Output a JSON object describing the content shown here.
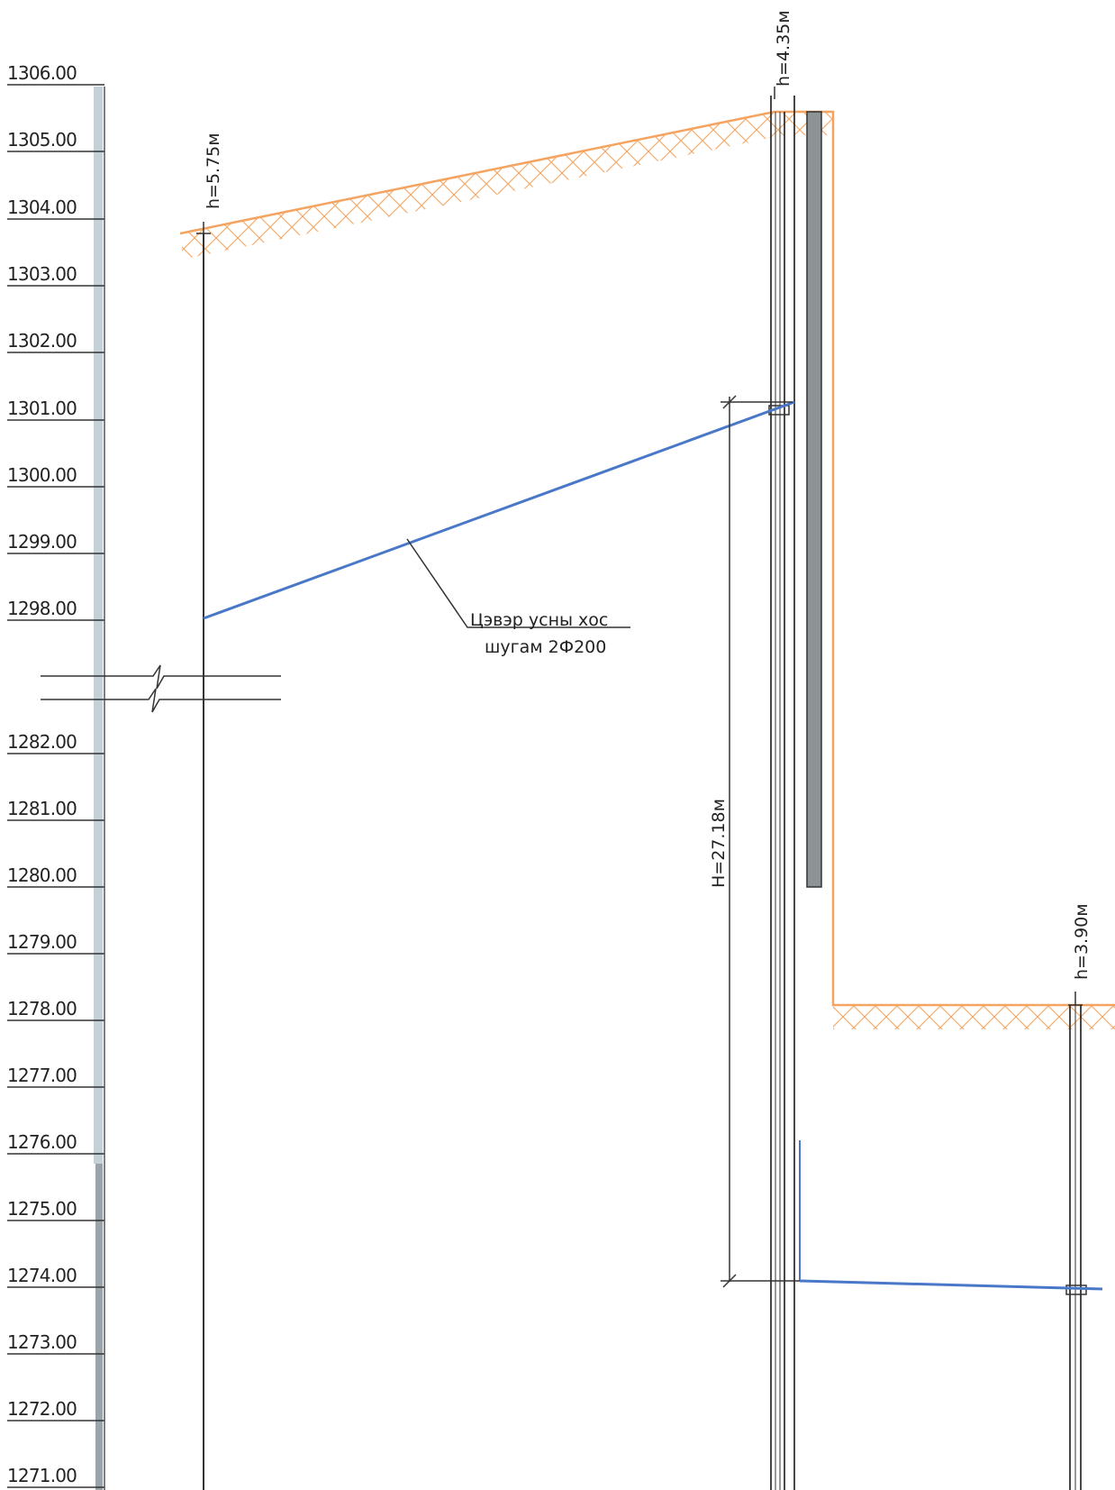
{
  "elevation_labels": [
    "1306.00",
    "1305.00",
    "1304.00",
    "1303.00",
    "1302.00",
    "1301.00",
    "1300.00",
    "1299.00",
    "1298.00",
    "1282.00",
    "1281.00",
    "1280.00",
    "1279.00",
    "1278.00",
    "1277.00",
    "1276.00",
    "1275.00",
    "1274.00",
    "1273.00",
    "1272.00",
    "1271.00"
  ],
  "wells": {
    "left": {
      "depth_label": "h=5.75м"
    },
    "middle": {
      "depth_label": "h=4.35м"
    },
    "right": {
      "depth_label": "h=3.90м"
    }
  },
  "head_dimension": {
    "label": "H=27.18м"
  },
  "pipe_note": {
    "line1": "Цэвэр усны хоc",
    "line2": "шугам 2Ф200"
  },
  "colors": {
    "ground": "#f4a460",
    "water_pipe": "#4a78c8",
    "lines": "#333333",
    "ruler": "#c5d1d8",
    "ruler_dark": "#9aa4aa",
    "casing": "#8c9498"
  }
}
